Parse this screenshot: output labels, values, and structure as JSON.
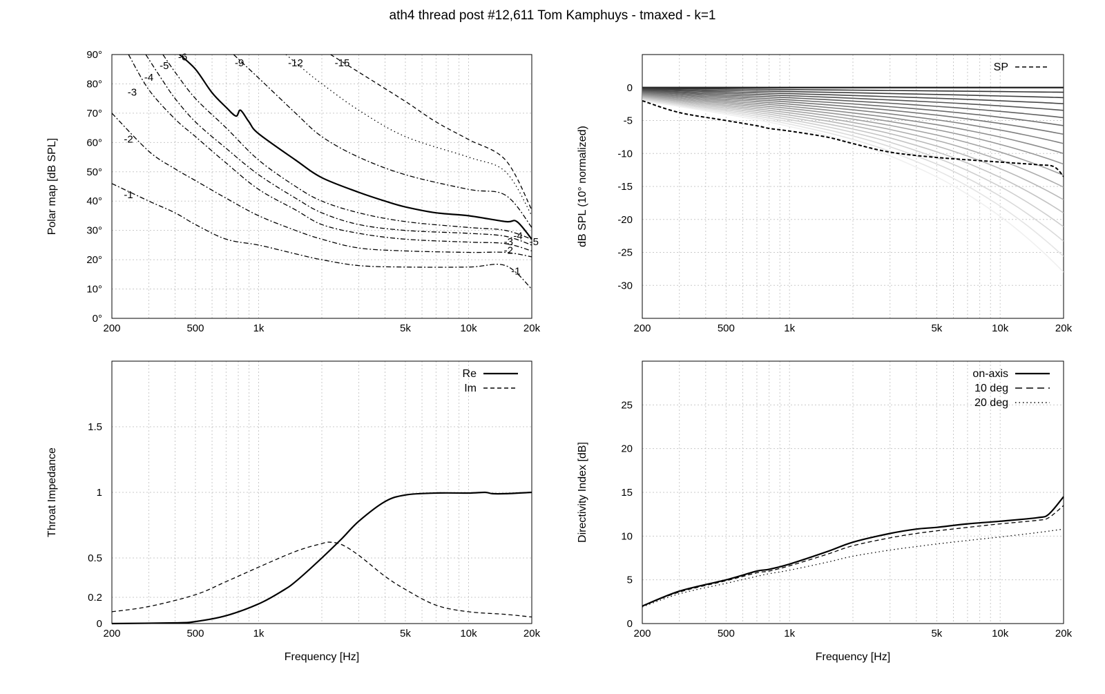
{
  "title": "ath4 thread post #12,611 Tom Kamphuys - tmaxed - k=1",
  "chart_data": [
    {
      "id": "polar",
      "type": "line",
      "xlabel": "",
      "ylabel": "Polar map [dB SPL]",
      "xscale": "log",
      "xlim": [
        200,
        20000
      ],
      "ylim": [
        0,
        90
      ],
      "xticks": [
        200,
        500,
        1000,
        5000,
        10000,
        20000
      ],
      "xtick_labels": [
        "200",
        "500",
        "1k",
        "5k",
        "10k",
        "20k"
      ],
      "yticks": [
        0,
        10,
        20,
        30,
        40,
        50,
        60,
        70,
        80,
        90
      ],
      "ytick_labels": [
        "0°",
        "10°",
        "20°",
        "30°",
        "40°",
        "50°",
        "60°",
        "70°",
        "80°",
        "90°"
      ],
      "grid": true,
      "series": [
        {
          "name": "-1",
          "style": "dashdot",
          "x": [
            200,
            300,
            400,
            500,
            700,
            1000,
            1500,
            2000,
            3000,
            5000,
            10000,
            15000,
            20000
          ],
          "y": [
            46,
            40,
            36,
            32,
            27,
            25,
            22,
            20,
            18,
            17.5,
            17.5,
            18,
            10
          ]
        },
        {
          "name": "-2",
          "style": "dashdot",
          "x": [
            200,
            300,
            400,
            500,
            700,
            1000,
            1500,
            2000,
            3000,
            5000,
            10000,
            15000,
            20000
          ],
          "y": [
            70,
            57,
            51,
            47,
            41,
            35,
            30,
            27,
            24,
            23,
            22.5,
            22.5,
            21
          ]
        },
        {
          "name": "-3",
          "style": "dashdot",
          "x": [
            240,
            300,
            400,
            500,
            700,
            1000,
            1500,
            2000,
            3000,
            5000,
            10000,
            15000,
            20000
          ],
          "y": [
            90,
            78,
            68,
            62,
            53,
            44,
            37,
            32,
            29,
            27,
            26,
            25.5,
            23
          ]
        },
        {
          "name": "-4",
          "style": "dashdot",
          "x": [
            290,
            350,
            400,
            500,
            700,
            1000,
            1500,
            2000,
            3000,
            5000,
            10000,
            15000,
            20000
          ],
          "y": [
            90,
            81,
            75,
            67,
            58,
            49,
            41,
            36,
            32,
            30,
            29,
            28,
            25
          ]
        },
        {
          "name": "-5",
          "style": "dashdot",
          "x": [
            350,
            400,
            500,
            700,
            1000,
            1500,
            2000,
            3000,
            5000,
            10000,
            15000,
            20000
          ],
          "y": [
            90,
            84,
            75,
            65,
            54,
            45,
            40,
            36,
            33,
            31,
            30,
            27
          ]
        },
        {
          "name": "-6",
          "style": "solid",
          "x": [
            420,
            500,
            600,
            700,
            780,
            820,
            900,
            1000,
            1500,
            2000,
            3000,
            4000,
            5000,
            7000,
            10000,
            15000,
            17000,
            20000
          ],
          "y": [
            90,
            85,
            77,
            72,
            69,
            71,
            67,
            63,
            54,
            48,
            43,
            40,
            38,
            36,
            35,
            33,
            33,
            27
          ]
        },
        {
          "name": "-9",
          "style": "dashdot",
          "x": [
            760,
            1000,
            1500,
            2000,
            3000,
            5000,
            10000,
            15000,
            20000
          ],
          "y": [
            90,
            82,
            70,
            62,
            55,
            49,
            44,
            42,
            31
          ]
        },
        {
          "name": "-12",
          "style": "dotted",
          "x": [
            1350,
            1700,
            2000,
            3000,
            5000,
            10000,
            15000,
            20000
          ],
          "y": [
            90,
            84,
            80,
            71,
            62,
            55,
            50,
            35
          ]
        },
        {
          "name": "-15",
          "style": "dashed",
          "x": [
            2200,
            3000,
            5000,
            7000,
            10000,
            15000,
            20000
          ],
          "y": [
            90,
            84,
            74,
            67,
            61,
            54,
            37
          ]
        }
      ],
      "annotations": [
        {
          "text": "-1",
          "x": 240,
          "y": 41
        },
        {
          "text": "-2",
          "x": 240,
          "y": 60
        },
        {
          "text": "-3",
          "x": 250,
          "y": 76
        },
        {
          "text": "-4",
          "x": 300,
          "y": 81
        },
        {
          "text": "-5",
          "x": 355,
          "y": 85
        },
        {
          "text": "-6",
          "x": 435,
          "y": 88
        },
        {
          "text": "-9",
          "x": 810,
          "y": 86
        },
        {
          "text": "-12",
          "x": 1500,
          "y": 86
        },
        {
          "text": "-15",
          "x": 2500,
          "y": 86
        },
        {
          "text": "-3",
          "x": 15500,
          "y": 25
        },
        {
          "text": "-4",
          "x": 17200,
          "y": 27
        },
        {
          "text": "-5",
          "x": 20500,
          "y": 25
        },
        {
          "text": "-2",
          "x": 15500,
          "y": 22
        },
        {
          "text": "-1",
          "x": 16800,
          "y": 15
        }
      ]
    },
    {
      "id": "spl",
      "type": "line",
      "xlabel": "",
      "ylabel": "dB SPL (10° normalized)",
      "xscale": "log",
      "xlim": [
        200,
        20000
      ],
      "ylim": [
        -35,
        5
      ],
      "xticks": [
        200,
        500,
        1000,
        5000,
        10000,
        20000
      ],
      "xtick_labels": [
        "200",
        "500",
        "1k",
        "5k",
        "10k",
        "20k"
      ],
      "yticks": [
        0,
        -5,
        -10,
        -15,
        -20,
        -25,
        -30
      ],
      "ytick_labels": [
        "0",
        "-5",
        "-10",
        "-15",
        "-20",
        "-25",
        "-30"
      ],
      "grid": true,
      "legend": {
        "position": "top-right",
        "entries": [
          {
            "name": "SP",
            "style": "dashed"
          }
        ]
      },
      "sp_curve": {
        "x": [
          200,
          300,
          500,
          700,
          800,
          1000,
          1500,
          2000,
          3000,
          5000,
          10000,
          15000,
          18000,
          20000
        ],
        "y": [
          -2,
          -3.8,
          -5,
          -5.8,
          -6.2,
          -6.6,
          -7.5,
          -8.5,
          -9.8,
          -10.6,
          -11.3,
          -11.7,
          -12,
          -13.5
        ]
      }
    },
    {
      "id": "impedance",
      "type": "line",
      "xlabel": "Frequency [Hz]",
      "ylabel": "Throat Impedance",
      "xscale": "log",
      "xlim": [
        200,
        20000
      ],
      "ylim": [
        0,
        2
      ],
      "xticks": [
        200,
        500,
        1000,
        5000,
        10000,
        20000
      ],
      "xtick_labels": [
        "200",
        "500",
        "1k",
        "5k",
        "10k",
        "20k"
      ],
      "yticks": [
        0,
        0.2,
        0.5,
        1,
        1.5
      ],
      "ytick_labels": [
        "0",
        "0.2",
        "0.5",
        "1",
        "1.5"
      ],
      "grid": true,
      "legend": {
        "position": "top-right",
        "entries": [
          {
            "name": "Re",
            "style": "solid"
          },
          {
            "name": "Im",
            "style": "dashed"
          }
        ]
      },
      "series": [
        {
          "name": "Re",
          "style": "solid",
          "x": [
            200,
            400,
            500,
            700,
            1000,
            1300,
            1500,
            2000,
            2500,
            3000,
            4000,
            5000,
            7000,
            10000,
            12000,
            13000,
            15000,
            20000
          ],
          "y": [
            0,
            0.005,
            0.015,
            0.06,
            0.15,
            0.25,
            0.32,
            0.5,
            0.65,
            0.78,
            0.93,
            0.98,
            0.995,
            0.995,
            1.0,
            0.99,
            0.99,
            1.0
          ]
        },
        {
          "name": "Im",
          "style": "dashed",
          "x": [
            200,
            300,
            500,
            700,
            1000,
            1500,
            2000,
            2200,
            2500,
            3000,
            4000,
            5000,
            7000,
            10000,
            15000,
            20000
          ],
          "y": [
            0.09,
            0.13,
            0.22,
            0.32,
            0.43,
            0.55,
            0.61,
            0.62,
            0.6,
            0.52,
            0.36,
            0.26,
            0.14,
            0.09,
            0.07,
            0.05
          ]
        }
      ]
    },
    {
      "id": "di",
      "type": "line",
      "xlabel": "Frequency [Hz]",
      "ylabel": "Directivity Index [dB]",
      "xscale": "log",
      "xlim": [
        200,
        20000
      ],
      "ylim": [
        0,
        30
      ],
      "xticks": [
        200,
        500,
        1000,
        5000,
        10000,
        20000
      ],
      "xtick_labels": [
        "200",
        "500",
        "1k",
        "5k",
        "10k",
        "20k"
      ],
      "yticks": [
        0,
        5,
        10,
        15,
        20,
        25
      ],
      "ytick_labels": [
        "0",
        "5",
        "10",
        "15",
        "20",
        "25"
      ],
      "grid": true,
      "legend": {
        "position": "top-right",
        "entries": [
          {
            "name": "on-axis",
            "style": "solid"
          },
          {
            "name": "10 deg",
            "style": "dashed"
          },
          {
            "name": "20 deg",
            "style": "dotted"
          }
        ]
      },
      "series": [
        {
          "name": "on-axis",
          "style": "solid",
          "x": [
            200,
            300,
            500,
            700,
            800,
            1000,
            1500,
            2000,
            3000,
            4000,
            5000,
            7000,
            10000,
            15000,
            17000,
            20000
          ],
          "y": [
            2,
            3.7,
            5,
            6,
            6.2,
            6.8,
            8.2,
            9.3,
            10.3,
            10.8,
            11,
            11.4,
            11.7,
            12.1,
            12.5,
            14.5
          ]
        },
        {
          "name": "10 deg",
          "style": "dashed",
          "x": [
            200,
            300,
            500,
            700,
            800,
            1000,
            1500,
            2000,
            3000,
            4000,
            5000,
            7000,
            10000,
            15000,
            17000,
            20000
          ],
          "y": [
            2,
            3.6,
            4.9,
            5.8,
            6,
            6.6,
            7.9,
            8.9,
            9.8,
            10.3,
            10.6,
            11,
            11.4,
            11.8,
            12.1,
            13.5
          ]
        },
        {
          "name": "20 deg",
          "style": "dotted",
          "x": [
            200,
            300,
            500,
            700,
            800,
            1000,
            1500,
            2000,
            3000,
            4000,
            5000,
            7000,
            10000,
            15000,
            20000
          ],
          "y": [
            1.9,
            3.4,
            4.6,
            5.4,
            5.7,
            6.1,
            7,
            7.7,
            8.4,
            8.8,
            9.1,
            9.5,
            9.9,
            10.4,
            10.8
          ]
        }
      ]
    }
  ]
}
